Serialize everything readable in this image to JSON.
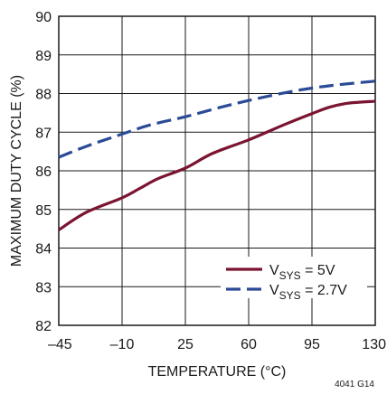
{
  "chart_data": {
    "type": "line",
    "title": "",
    "xlabel": "TEMPERATURE (°C)",
    "ylabel": "MAXIMUM DUTY CYCLE (%)",
    "xlim": [
      -45,
      130
    ],
    "ylim": [
      82,
      90
    ],
    "xticks": [
      -45,
      -10,
      25,
      60,
      95,
      130
    ],
    "yticks": [
      82,
      83,
      84,
      85,
      86,
      87,
      88,
      89,
      90
    ],
    "xtick_labels": [
      "–45",
      "–10",
      "25",
      "60",
      "95",
      "130"
    ],
    "ytick_labels": [
      "82",
      "83",
      "84",
      "85",
      "86",
      "87",
      "88",
      "89",
      "90"
    ],
    "grid": true,
    "legend_position": "bottom-right",
    "figure_id": "4041 G14",
    "series": [
      {
        "name": "VSYS = 5V",
        "label_main": "V",
        "label_sub": "SYS",
        "label_rest": " = 5V",
        "color": "#7a1430",
        "style": "solid",
        "x": [
          -45,
          -30,
          -10,
          0,
          10,
          25,
          40,
          60,
          80,
          95,
          105,
          115,
          130
        ],
        "y": [
          84.47,
          84.92,
          85.3,
          85.55,
          85.8,
          86.07,
          86.45,
          86.8,
          87.2,
          87.48,
          87.65,
          87.75,
          87.8
        ]
      },
      {
        "name": "VSYS = 2.7V",
        "label_main": "V",
        "label_sub": "SYS",
        "label_rest": " = 2.7V",
        "color": "#2b4b96",
        "style": "dashed",
        "x": [
          -45,
          -30,
          -10,
          5,
          25,
          45,
          60,
          80,
          95,
          110,
          130
        ],
        "y": [
          86.35,
          86.63,
          86.95,
          87.18,
          87.4,
          87.65,
          87.82,
          88.02,
          88.14,
          88.23,
          88.32
        ]
      }
    ]
  }
}
